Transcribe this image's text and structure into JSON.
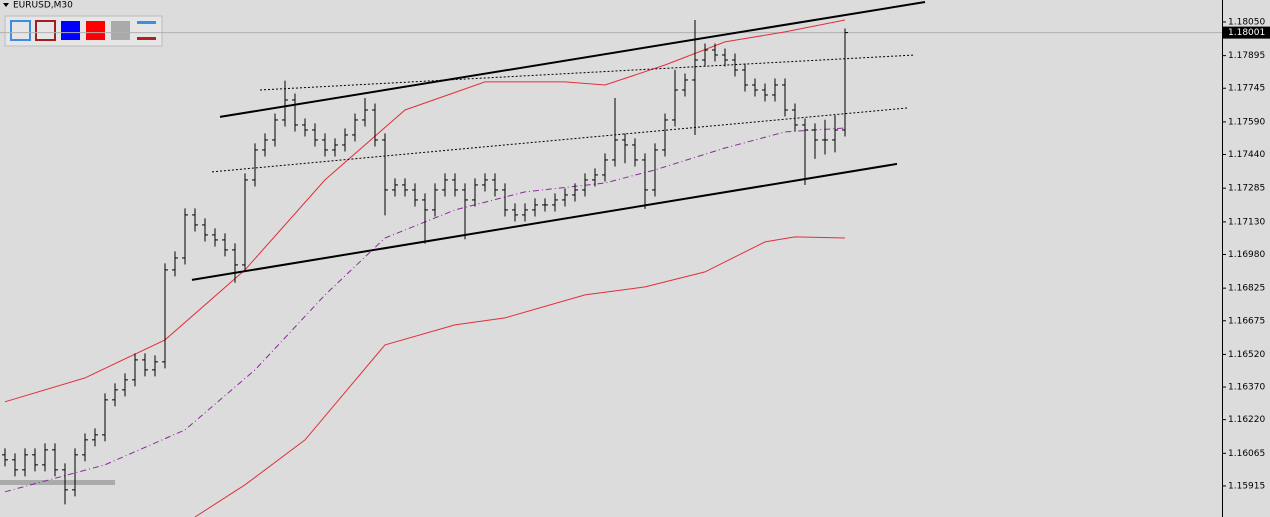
{
  "chart_data": {
    "type": "ohlc",
    "title": "EURUSD,M30",
    "xlim": [
      -0.5,
      121.7
    ],
    "ylim": [
      1.15772,
      1.18151
    ],
    "yticks": [
      {
        "value": 1.1805,
        "label": "1.18050"
      },
      {
        "value": 1.17895,
        "label": "1.17895"
      },
      {
        "value": 1.17745,
        "label": "1.17745"
      },
      {
        "value": 1.1759,
        "label": "1.17590"
      },
      {
        "value": 1.1744,
        "label": "1.17440"
      },
      {
        "value": 1.17285,
        "label": "1.17285"
      },
      {
        "value": 1.1713,
        "label": "1.17130"
      },
      {
        "value": 1.1698,
        "label": "1.16980"
      },
      {
        "value": 1.16825,
        "label": "1.16825"
      },
      {
        "value": 1.16675,
        "label": "1.16675"
      },
      {
        "value": 1.1652,
        "label": "1.16520"
      },
      {
        "value": 1.1637,
        "label": "1.16370"
      },
      {
        "value": 1.1622,
        "label": "1.16220"
      },
      {
        "value": 1.16065,
        "label": "1.16065"
      },
      {
        "value": 1.15915,
        "label": "1.15915"
      }
    ],
    "current_price": {
      "value": 1.18001,
      "label": "1.18001"
    },
    "color": "#000000",
    "open": [
      1.16058,
      1.16035,
      1.15989,
      1.16058,
      1.16012,
      1.16081,
      1.15989,
      1.15897,
      1.16058,
      1.16127,
      1.1615,
      1.16311,
      1.16357,
      1.16403,
      1.16495,
      1.16449,
      1.16486,
      1.16909,
      1.16964,
      1.17162,
      1.17116,
      1.1707,
      1.17047,
      1.17001,
      1.16932,
      1.17323,
      1.17461,
      1.17507,
      1.17599,
      1.17691,
      1.17576,
      1.17553,
      1.17507,
      1.17461,
      1.17484,
      1.1753,
      1.17599,
      1.17645,
      1.17507,
      1.17277,
      1.173,
      1.17277,
      1.17231,
      1.17185,
      1.17277,
      1.17323,
      1.17277,
      1.17231,
      1.173,
      1.17323,
      1.17277,
      1.17185,
      1.17162,
      1.17185,
      1.17208,
      1.17208,
      1.17231,
      1.17254,
      1.17277,
      1.17323,
      1.17346,
      1.17415,
      1.17507,
      1.17484,
      1.17415,
      1.17277,
      1.17461,
      1.17599,
      1.17737,
      1.17783,
      1.17875,
      1.17921,
      1.17898,
      1.17875,
      1.17829,
      1.1776,
      1.17737,
      1.17714,
      1.1776,
      1.17645,
      1.17576,
      1.17553,
      1.17507,
      1.17507,
      1.17553
    ],
    "high": [
      1.16088,
      1.16065,
      1.16088,
      1.16088,
      1.16111,
      1.16111,
      1.16019,
      1.16088,
      1.16157,
      1.1618,
      1.16341,
      1.16387,
      1.16433,
      1.16525,
      1.16525,
      1.16516,
      1.16939,
      1.16994,
      1.17192,
      1.17192,
      1.17146,
      1.171,
      1.17077,
      1.17031,
      1.17353,
      1.17491,
      1.17537,
      1.17629,
      1.1778,
      1.17721,
      1.17606,
      1.17583,
      1.17537,
      1.17514,
      1.1756,
      1.17629,
      1.177,
      1.17675,
      1.17537,
      1.1733,
      1.1733,
      1.17307,
      1.17261,
      1.17307,
      1.17353,
      1.17353,
      1.17307,
      1.1733,
      1.17353,
      1.17353,
      1.17307,
      1.17215,
      1.17215,
      1.17238,
      1.17238,
      1.17261,
      1.17284,
      1.17307,
      1.17353,
      1.17376,
      1.17445,
      1.177,
      1.17537,
      1.17514,
      1.17445,
      1.17491,
      1.17629,
      1.1783,
      1.17813,
      1.18059,
      1.17951,
      1.17951,
      1.17928,
      1.17905,
      1.17859,
      1.1779,
      1.17767,
      1.1779,
      1.1779,
      1.17675,
      1.17606,
      1.17583,
      1.176,
      1.1762,
      1.1802
    ],
    "low": [
      1.16005,
      1.15959,
      1.15959,
      1.15982,
      1.15982,
      1.15959,
      1.1583,
      1.15867,
      1.16028,
      1.16097,
      1.1612,
      1.16281,
      1.16327,
      1.16373,
      1.16419,
      1.16419,
      1.16456,
      1.16879,
      1.16934,
      1.17086,
      1.1704,
      1.17017,
      1.16971,
      1.1685,
      1.16902,
      1.17293,
      1.17431,
      1.17477,
      1.17569,
      1.17546,
      1.17523,
      1.17477,
      1.17431,
      1.17431,
      1.17454,
      1.175,
      1.17569,
      1.17477,
      1.1716,
      1.17247,
      1.17247,
      1.17201,
      1.1703,
      1.17155,
      1.17247,
      1.17247,
      1.1705,
      1.17201,
      1.1727,
      1.17247,
      1.17155,
      1.17132,
      1.17132,
      1.17155,
      1.17178,
      1.17178,
      1.17201,
      1.17224,
      1.17247,
      1.17293,
      1.17316,
      1.17385,
      1.174,
      1.17385,
      1.1719,
      1.17247,
      1.17431,
      1.17569,
      1.17707,
      1.1753,
      1.17845,
      1.17868,
      1.17845,
      1.17799,
      1.1773,
      1.17707,
      1.17684,
      1.17684,
      1.17615,
      1.17546,
      1.173,
      1.1742,
      1.1744,
      1.1745,
      1.17523
    ],
    "close": [
      1.16035,
      1.15989,
      1.16058,
      1.16012,
      1.16081,
      1.15989,
      1.15897,
      1.16058,
      1.16127,
      1.1615,
      1.16311,
      1.16357,
      1.16403,
      1.16495,
      1.16449,
      1.16486,
      1.16909,
      1.16964,
      1.17162,
      1.17116,
      1.1707,
      1.17047,
      1.17001,
      1.16932,
      1.17323,
      1.17461,
      1.17507,
      1.17599,
      1.17691,
      1.17576,
      1.17553,
      1.17507,
      1.17461,
      1.17484,
      1.1753,
      1.17599,
      1.17645,
      1.17507,
      1.17277,
      1.173,
      1.17277,
      1.17231,
      1.17185,
      1.17277,
      1.17323,
      1.17277,
      1.17231,
      1.173,
      1.17323,
      1.17277,
      1.17185,
      1.17162,
      1.17185,
      1.17208,
      1.17208,
      1.17231,
      1.17254,
      1.17277,
      1.17323,
      1.17346,
      1.17415,
      1.17507,
      1.17484,
      1.17415,
      1.17277,
      1.17461,
      1.17599,
      1.17737,
      1.17783,
      1.17875,
      1.17921,
      1.17898,
      1.17875,
      1.17829,
      1.1776,
      1.17737,
      1.17714,
      1.1776,
      1.17645,
      1.17576,
      1.17553,
      1.17507,
      1.17507,
      1.17553,
      1.18001
    ],
    "lines": [
      {
        "color": "#e0303a",
        "style": "solid",
        "width": 1,
        "x": [
          0,
          8,
          16,
          24,
          32,
          40,
          48,
          56,
          60,
          66,
          72,
          78,
          84
        ],
        "values": [
          1.16302,
          1.16412,
          1.16587,
          1.16909,
          1.17323,
          1.17645,
          1.17774,
          1.17774,
          1.1776,
          1.17852,
          1.17958,
          1.18004,
          1.18059
        ]
      },
      {
        "color": "#e0303a",
        "style": "solid",
        "width": 1,
        "x": [
          19,
          24,
          30,
          38,
          45,
          50,
          58,
          64,
          70,
          76,
          79,
          84
        ],
        "values": [
          1.15772,
          1.1592,
          1.16127,
          1.16564,
          1.16656,
          1.16688,
          1.16794,
          1.16831,
          1.169,
          1.17038,
          1.17061,
          1.17056
        ]
      },
      {
        "color": "#8a2b9a",
        "style": "dashdot",
        "width": 1,
        "x": [
          0,
          10,
          18,
          25,
          32,
          38,
          45,
          52,
          60,
          65,
          72,
          78,
          84
        ],
        "values": [
          1.15888,
          1.16012,
          1.16173,
          1.16449,
          1.16794,
          1.17056,
          1.17185,
          1.17268,
          1.17309,
          1.17369,
          1.1747,
          1.17544,
          1.17562
        ]
      },
      {
        "color": "#000000",
        "style": "solid",
        "width": 2,
        "x": [
          21.5,
          92
        ],
        "values": [
          1.17613,
          1.18142
        ]
      },
      {
        "color": "#000000",
        "style": "solid",
        "width": 2,
        "x": [
          18.7,
          89.2
        ],
        "values": [
          1.16863,
          1.17397
        ]
      },
      {
        "color": "#000000",
        "style": "dotted",
        "width": 1,
        "x": [
          25.5,
          91
        ],
        "values": [
          1.17737,
          1.17898
        ]
      },
      {
        "color": "#000000",
        "style": "dotted",
        "width": 1,
        "x": [
          20.7,
          90.2
        ],
        "values": [
          1.1736,
          1.17654
        ]
      }
    ]
  }
}
